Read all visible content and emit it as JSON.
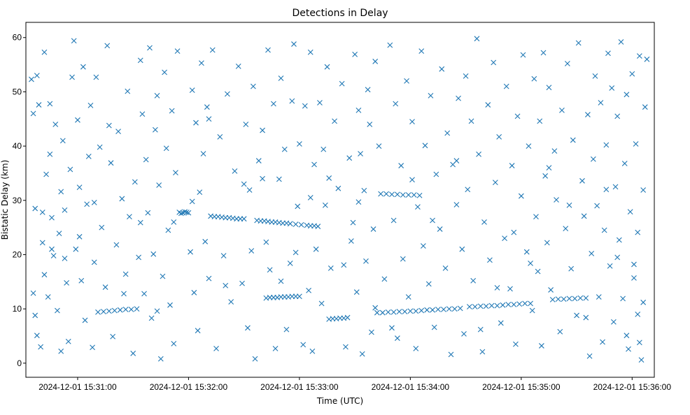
{
  "chart_data": {
    "type": "scatter",
    "title": "Detections in Delay",
    "xlabel": "Time (UTC)",
    "ylabel": "Bistatic Delay (km)",
    "x_unit": "seconds after 2024-12-01 15:30:00 UTC",
    "xlim": [
      32,
      372
    ],
    "ylim": [
      -2.6,
      62.8
    ],
    "grid": false,
    "marker": "x",
    "color": "#1f77b4",
    "xticks": [
      {
        "value": 60,
        "label": "2024-12-01 15:31:00"
      },
      {
        "value": 120,
        "label": "2024-12-01 15:32:00"
      },
      {
        "value": 180,
        "label": "2024-12-01 15:33:00"
      },
      {
        "value": 240,
        "label": "2024-12-01 15:34:00"
      },
      {
        "value": 300,
        "label": "2024-12-01 15:35:00"
      },
      {
        "value": 360,
        "label": "2024-12-01 15:36:00"
      }
    ],
    "yticks": [
      {
        "value": 0,
        "label": "0"
      },
      {
        "value": 10,
        "label": "10"
      },
      {
        "value": 20,
        "label": "20"
      },
      {
        "value": 30,
        "label": "30"
      },
      {
        "value": 40,
        "label": "40"
      },
      {
        "value": 50,
        "label": "50"
      },
      {
        "value": 60,
        "label": "60"
      }
    ],
    "tracks": [
      [
        [
          115,
          27.8
        ],
        [
          116,
          27.6
        ],
        [
          117,
          27.7
        ],
        [
          118,
          27.9
        ],
        [
          119,
          27.8
        ],
        [
          120,
          27.7
        ],
        [
          132,
          27.1
        ],
        [
          134,
          27.0
        ],
        [
          136,
          27.0
        ],
        [
          138,
          26.9
        ],
        [
          140,
          26.8
        ],
        [
          142,
          26.8
        ],
        [
          144,
          26.7
        ],
        [
          146,
          26.6
        ],
        [
          148,
          26.6
        ],
        [
          150,
          26.6
        ],
        [
          157,
          26.3
        ],
        [
          159,
          26.2
        ],
        [
          161,
          26.2
        ],
        [
          163,
          26.1
        ],
        [
          165,
          26.0
        ],
        [
          167,
          26.0
        ],
        [
          169,
          25.9
        ],
        [
          171,
          25.8
        ],
        [
          173,
          25.8
        ],
        [
          175,
          25.7
        ],
        [
          178,
          25.6
        ],
        [
          181,
          25.5
        ],
        [
          184,
          25.4
        ],
        [
          186,
          25.3
        ],
        [
          188,
          25.3
        ],
        [
          190,
          25.2
        ]
      ],
      [
        [
          162,
          12.0
        ],
        [
          164,
          12.1
        ],
        [
          166,
          12.1
        ],
        [
          168,
          12.1
        ],
        [
          170,
          12.2
        ],
        [
          172,
          12.2
        ],
        [
          174,
          12.2
        ],
        [
          176,
          12.3
        ],
        [
          178,
          12.3
        ],
        [
          180,
          12.3
        ]
      ],
      [
        [
          196,
          8.1
        ],
        [
          198,
          8.2
        ],
        [
          200,
          8.2
        ],
        [
          202,
          8.3
        ],
        [
          204,
          8.3
        ],
        [
          206,
          8.4
        ]
      ],
      [
        [
          222,
          9.3
        ],
        [
          225,
          9.3
        ],
        [
          228,
          9.4
        ],
        [
          231,
          9.4
        ],
        [
          234,
          9.5
        ],
        [
          237,
          9.5
        ],
        [
          240,
          9.6
        ],
        [
          243,
          9.6
        ],
        [
          246,
          9.7
        ],
        [
          249,
          9.8
        ],
        [
          252,
          9.8
        ],
        [
          255,
          9.9
        ],
        [
          258,
          9.9
        ],
        [
          261,
          10.0
        ],
        [
          264,
          10.0
        ],
        [
          267,
          10.1
        ]
      ],
      [
        [
          272,
          10.4
        ],
        [
          275,
          10.4
        ],
        [
          278,
          10.5
        ],
        [
          281,
          10.5
        ],
        [
          284,
          10.6
        ],
        [
          287,
          10.6
        ],
        [
          290,
          10.7
        ],
        [
          293,
          10.8
        ],
        [
          296,
          10.8
        ],
        [
          299,
          10.9
        ],
        [
          302,
          11.0
        ],
        [
          305,
          11.0
        ]
      ],
      [
        [
          317,
          11.7
        ],
        [
          320,
          11.8
        ],
        [
          323,
          11.8
        ],
        [
          326,
          11.9
        ],
        [
          329,
          11.9
        ],
        [
          332,
          12.0
        ],
        [
          335,
          12.0
        ]
      ],
      [
        [
          224,
          31.2
        ],
        [
          227,
          31.2
        ],
        [
          230,
          31.1
        ],
        [
          233,
          31.1
        ],
        [
          236,
          31.0
        ],
        [
          239,
          31.0
        ],
        [
          242,
          31.0
        ],
        [
          245,
          30.9
        ]
      ],
      [
        [
          71,
          9.4
        ],
        [
          74,
          9.5
        ],
        [
          77,
          9.6
        ],
        [
          80,
          9.7
        ],
        [
          83,
          9.8
        ],
        [
          86,
          9.9
        ],
        [
          89,
          9.9
        ],
        [
          92,
          10.0
        ]
      ]
    ],
    "points": [
      [
        35,
        52.3
      ],
      [
        36,
        46.0
      ],
      [
        36,
        12.9
      ],
      [
        37,
        28.5
      ],
      [
        38,
        53.0
      ],
      [
        38,
        5.1
      ],
      [
        39,
        47.6
      ],
      [
        40,
        3.0
      ],
      [
        41,
        22.2
      ],
      [
        42,
        57.3
      ],
      [
        42,
        16.3
      ],
      [
        43,
        34.8
      ],
      [
        44,
        12.2
      ],
      [
        45,
        47.8
      ],
      [
        45,
        38.5
      ],
      [
        46,
        26.8
      ],
      [
        47,
        19.8
      ],
      [
        48,
        44.0
      ],
      [
        49,
        9.7
      ],
      [
        50,
        23.9
      ],
      [
        51,
        2.2
      ],
      [
        51,
        31.6
      ],
      [
        52,
        41.0
      ],
      [
        53,
        28.2
      ],
      [
        54,
        14.8
      ],
      [
        55,
        4.0
      ],
      [
        56,
        35.7
      ],
      [
        57,
        52.7
      ],
      [
        58,
        59.4
      ],
      [
        59,
        21.0
      ],
      [
        60,
        44.8
      ],
      [
        61,
        32.4
      ],
      [
        62,
        15.2
      ],
      [
        63,
        54.6
      ],
      [
        64,
        7.9
      ],
      [
        65,
        29.3
      ],
      [
        66,
        38.1
      ],
      [
        67,
        47.5
      ],
      [
        68,
        2.9
      ],
      [
        69,
        18.6
      ],
      [
        70,
        52.7
      ],
      [
        72,
        39.8
      ],
      [
        73,
        25.0
      ],
      [
        75,
        14.0
      ],
      [
        76,
        58.5
      ],
      [
        78,
        36.9
      ],
      [
        79,
        4.9
      ],
      [
        81,
        21.8
      ],
      [
        82,
        42.7
      ],
      [
        84,
        30.3
      ],
      [
        85,
        12.8
      ],
      [
        87,
        50.1
      ],
      [
        88,
        27.0
      ],
      [
        90,
        1.8
      ],
      [
        91,
        33.4
      ],
      [
        93,
        19.5
      ],
      [
        94,
        55.8
      ],
      [
        95,
        45.9
      ],
      [
        96,
        12.8
      ],
      [
        97,
        37.5
      ],
      [
        98,
        27.7
      ],
      [
        99,
        58.1
      ],
      [
        100,
        8.3
      ],
      [
        101,
        20.1
      ],
      [
        102,
        43.0
      ],
      [
        103,
        49.3
      ],
      [
        104,
        32.8
      ],
      [
        105,
        0.8
      ],
      [
        106,
        16.0
      ],
      [
        107,
        53.6
      ],
      [
        108,
        39.6
      ],
      [
        109,
        24.5
      ],
      [
        110,
        10.7
      ],
      [
        111,
        46.5
      ],
      [
        112,
        3.6
      ],
      [
        113,
        35.1
      ],
      [
        114,
        57.5
      ],
      [
        121,
        20.5
      ],
      [
        122,
        50.3
      ],
      [
        123,
        13.0
      ],
      [
        124,
        44.3
      ],
      [
        125,
        6.0
      ],
      [
        126,
        31.5
      ],
      [
        127,
        55.3
      ],
      [
        128,
        38.6
      ],
      [
        129,
        22.4
      ],
      [
        130,
        47.2
      ],
      [
        131,
        15.6
      ],
      [
        133,
        57.7
      ],
      [
        135,
        2.7
      ],
      [
        137,
        41.7
      ],
      [
        139,
        19.8
      ],
      [
        141,
        49.6
      ],
      [
        143,
        11.3
      ],
      [
        145,
        35.4
      ],
      [
        147,
        54.7
      ],
      [
        149,
        14.7
      ],
      [
        151,
        44.0
      ],
      [
        152,
        6.5
      ],
      [
        153,
        31.9
      ],
      [
        154,
        20.7
      ],
      [
        155,
        51.0
      ],
      [
        156,
        0.8
      ],
      [
        158,
        37.3
      ],
      [
        160,
        42.9
      ],
      [
        162,
        22.3
      ],
      [
        163,
        57.7
      ],
      [
        164,
        17.2
      ],
      [
        166,
        47.8
      ],
      [
        167,
        2.7
      ],
      [
        169,
        33.9
      ],
      [
        170,
        52.5
      ],
      [
        172,
        39.4
      ],
      [
        173,
        6.2
      ],
      [
        175,
        18.4
      ],
      [
        176,
        48.3
      ],
      [
        177,
        58.8
      ],
      [
        179,
        28.9
      ],
      [
        180,
        40.4
      ],
      [
        182,
        3.4
      ],
      [
        183,
        47.4
      ],
      [
        185,
        13.4
      ],
      [
        186,
        57.3
      ],
      [
        187,
        2.2
      ],
      [
        188,
        36.6
      ],
      [
        189,
        21.0
      ],
      [
        191,
        48.0
      ],
      [
        192,
        11.0
      ],
      [
        193,
        39.4
      ],
      [
        194,
        29.1
      ],
      [
        195,
        54.6
      ],
      [
        197,
        17.5
      ],
      [
        199,
        44.6
      ],
      [
        201,
        32.2
      ],
      [
        203,
        51.5
      ],
      [
        205,
        3.0
      ],
      [
        207,
        37.8
      ],
      [
        208,
        22.5
      ],
      [
        209,
        25.9
      ],
      [
        210,
        56.9
      ],
      [
        211,
        13.1
      ],
      [
        212,
        46.6
      ],
      [
        213,
        38.6
      ],
      [
        214,
        1.7
      ],
      [
        215,
        31.8
      ],
      [
        216,
        18.8
      ],
      [
        217,
        50.4
      ],
      [
        218,
        44.0
      ],
      [
        219,
        5.7
      ],
      [
        220,
        24.7
      ],
      [
        221,
        55.6
      ],
      [
        223,
        40.0
      ],
      [
        226,
        15.5
      ],
      [
        229,
        58.6
      ],
      [
        231,
        26.3
      ],
      [
        232,
        47.8
      ],
      [
        233,
        4.6
      ],
      [
        235,
        36.4
      ],
      [
        236,
        19.2
      ],
      [
        238,
        52.0
      ],
      [
        239,
        12.2
      ],
      [
        241,
        44.5
      ],
      [
        243,
        2.7
      ],
      [
        244,
        28.8
      ],
      [
        246,
        57.5
      ],
      [
        247,
        21.6
      ],
      [
        248,
        40.1
      ],
      [
        250,
        14.6
      ],
      [
        251,
        49.3
      ],
      [
        253,
        6.6
      ],
      [
        254,
        34.8
      ],
      [
        256,
        24.7
      ],
      [
        257,
        54.2
      ],
      [
        259,
        17.5
      ],
      [
        260,
        42.4
      ],
      [
        262,
        1.6
      ],
      [
        263,
        36.6
      ],
      [
        265,
        29.2
      ],
      [
        266,
        48.8
      ],
      [
        268,
        21.0
      ],
      [
        269,
        5.4
      ],
      [
        270,
        52.9
      ],
      [
        271,
        32.0
      ],
      [
        273,
        44.6
      ],
      [
        274,
        15.2
      ],
      [
        276,
        59.8
      ],
      [
        277,
        38.5
      ],
      [
        279,
        2.1
      ],
      [
        280,
        26.0
      ],
      [
        282,
        47.6
      ],
      [
        283,
        19.0
      ],
      [
        285,
        55.4
      ],
      [
        286,
        33.3
      ],
      [
        288,
        41.7
      ],
      [
        289,
        7.4
      ],
      [
        291,
        23.0
      ],
      [
        292,
        51.0
      ],
      [
        294,
        13.7
      ],
      [
        295,
        36.4
      ],
      [
        297,
        3.5
      ],
      [
        298,
        45.5
      ],
      [
        300,
        30.8
      ],
      [
        301,
        56.8
      ],
      [
        303,
        20.5
      ],
      [
        304,
        40.0
      ],
      [
        306,
        9.7
      ],
      [
        307,
        52.4
      ],
      [
        308,
        27.0
      ],
      [
        309,
        16.9
      ],
      [
        310,
        44.6
      ],
      [
        311,
        3.2
      ],
      [
        312,
        57.2
      ],
      [
        313,
        34.5
      ],
      [
        314,
        22.2
      ],
      [
        315,
        50.8
      ],
      [
        316,
        13.5
      ],
      [
        318,
        39.1
      ],
      [
        319,
        30.1
      ],
      [
        321,
        5.8
      ],
      [
        322,
        46.6
      ],
      [
        324,
        24.8
      ],
      [
        325,
        55.2
      ],
      [
        327,
        17.4
      ],
      [
        328,
        41.1
      ],
      [
        330,
        8.8
      ],
      [
        331,
        59.0
      ],
      [
        333,
        33.6
      ],
      [
        334,
        27.1
      ],
      [
        336,
        45.8
      ],
      [
        337,
        1.3
      ],
      [
        338,
        20.2
      ],
      [
        339,
        37.6
      ],
      [
        340,
        52.9
      ],
      [
        341,
        29.0
      ],
      [
        342,
        12.2
      ],
      [
        343,
        48.0
      ],
      [
        344,
        3.9
      ],
      [
        345,
        24.5
      ],
      [
        346,
        40.2
      ],
      [
        347,
        57.1
      ],
      [
        348,
        17.9
      ],
      [
        349,
        50.7
      ],
      [
        350,
        7.6
      ],
      [
        351,
        32.5
      ],
      [
        352,
        45.5
      ],
      [
        353,
        22.7
      ],
      [
        354,
        59.2
      ],
      [
        355,
        11.9
      ],
      [
        356,
        36.8
      ],
      [
        357,
        49.5
      ],
      [
        358,
        2.6
      ],
      [
        359,
        27.9
      ],
      [
        360,
        53.3
      ],
      [
        361,
        15.7
      ],
      [
        362,
        40.4
      ],
      [
        363,
        24.1
      ],
      [
        364,
        56.6
      ],
      [
        364,
        3.8
      ],
      [
        365,
        0.6
      ],
      [
        366,
        31.9
      ],
      [
        367,
        47.2
      ],
      [
        368,
        56.0
      ],
      [
        366,
        11.2
      ],
      [
        363,
        9.0
      ],
      [
        361,
        18.2
      ],
      [
        357,
        5.1
      ],
      [
        352,
        19.5
      ],
      [
        346,
        32.0
      ],
      [
        335,
        8.4
      ],
      [
        326,
        29.1
      ],
      [
        315,
        36.0
      ],
      [
        305,
        18.4
      ],
      [
        296,
        24.1
      ],
      [
        287,
        13.9
      ],
      [
        278,
        6.2
      ],
      [
        265,
        37.3
      ],
      [
        252,
        26.3
      ],
      [
        241,
        33.8
      ],
      [
        230,
        6.5
      ],
      [
        221,
        10.2
      ],
      [
        212,
        29.7
      ],
      [
        204,
        18.1
      ],
      [
        196,
        34.1
      ],
      [
        186,
        30.5
      ],
      [
        178,
        20.4
      ],
      [
        170,
        15.1
      ],
      [
        160,
        34.0
      ],
      [
        150,
        33.0
      ],
      [
        140,
        14.3
      ],
      [
        131,
        45.0
      ],
      [
        122,
        29.8
      ],
      [
        112,
        26.0
      ],
      [
        103,
        9.6
      ],
      [
        94,
        25.9
      ],
      [
        86,
        16.4
      ],
      [
        77,
        43.8
      ],
      [
        69,
        29.6
      ],
      [
        61,
        23.3
      ],
      [
        53,
        19.3
      ],
      [
        46,
        21.0
      ],
      [
        41,
        27.8
      ],
      [
        37,
        8.8
      ]
    ]
  }
}
